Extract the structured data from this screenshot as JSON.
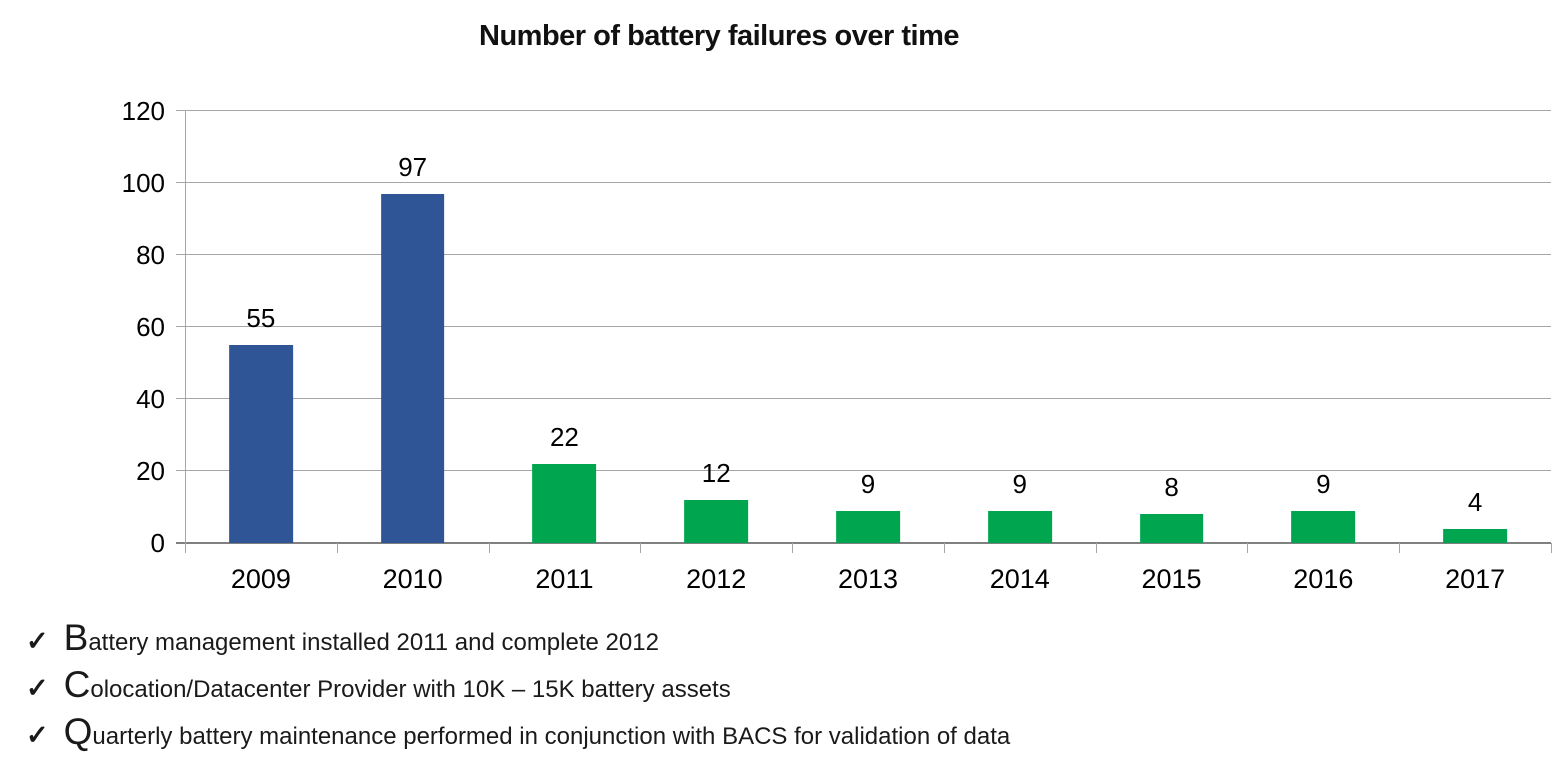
{
  "chart_data": {
    "type": "bar",
    "title": "Number of battery failures over time",
    "categories": [
      "2009",
      "2010",
      "2011",
      "2012",
      "2013",
      "2014",
      "2015",
      "2016",
      "2017"
    ],
    "values": [
      55,
      97,
      22,
      12,
      9,
      9,
      8,
      9,
      4
    ],
    "bar_colors": [
      "#2F5597",
      "#2F5597",
      "#00A550",
      "#00A550",
      "#00A550",
      "#00A550",
      "#00A550",
      "#00A550",
      "#00A550"
    ],
    "xlabel": "",
    "ylabel": "",
    "ylim": [
      0,
      120
    ],
    "y_ticks": [
      0,
      20,
      40,
      60,
      80,
      100,
      120
    ],
    "grid": true,
    "legend": "none",
    "data_labels": true,
    "colors": {
      "blue_2009_2010": "#2F5597",
      "green_2011_2017": "#00A550",
      "gridline": "#A6A6A6",
      "axis_baseline": "#808080",
      "text": "#000000"
    }
  },
  "notes": {
    "bullet_icon": "✓",
    "items": [
      {
        "lead": "B",
        "rest": "attery management installed 2011 and complete 2012"
      },
      {
        "lead": "C",
        "rest": "olocation/Datacenter Provider with 10K – 15K battery assets"
      },
      {
        "lead": "Q",
        "rest": "uarterly battery maintenance performed in conjunction with BACS for validation of data"
      }
    ]
  }
}
